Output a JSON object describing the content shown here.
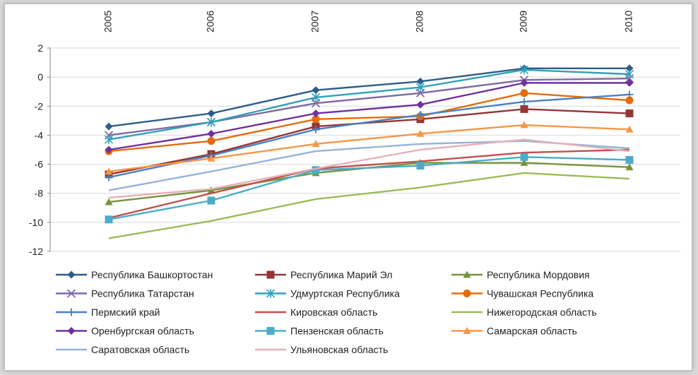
{
  "chart_data": {
    "type": "line",
    "title": "",
    "xlabel": "",
    "ylabel": "",
    "categories": [
      "2005",
      "2006",
      "2007",
      "2008",
      "2009",
      "2010"
    ],
    "ylim": [
      -12,
      2
    ],
    "yticks": [
      2,
      0,
      -2,
      -4,
      -6,
      -8,
      -10,
      -12
    ],
    "grid": true,
    "legend_position": "bottom",
    "series": [
      {
        "name": "Республика Башкортостан",
        "color": "#2e5c8a",
        "marker": "diamond",
        "values": [
          -3.4,
          -2.5,
          -0.9,
          -0.3,
          0.6,
          0.6
        ]
      },
      {
        "name": "Республика Марий Эл",
        "color": "#943634",
        "marker": "square",
        "values": [
          -6.7,
          -5.3,
          -3.4,
          -2.9,
          -2.2,
          -2.5
        ]
      },
      {
        "name": "Республика Мордовия",
        "color": "#77933c",
        "marker": "triangle",
        "values": [
          -8.6,
          -7.8,
          -6.6,
          -5.9,
          -5.9,
          -6.2
        ]
      },
      {
        "name": "Республика Татарстан",
        "color": "#7f6aa3",
        "marker": "x",
        "values": [
          -4.0,
          -3.1,
          -1.8,
          -1.1,
          -0.2,
          -0.1
        ]
      },
      {
        "name": "Удмуртская Республика",
        "color": "#31a0b8",
        "marker": "star",
        "values": [
          -4.3,
          -3.1,
          -1.4,
          -0.7,
          0.5,
          0.2
        ]
      },
      {
        "name": "Чувашская Республика",
        "color": "#e46c0a",
        "marker": "circle",
        "values": [
          -5.1,
          -4.4,
          -2.9,
          -2.7,
          -1.1,
          -1.6
        ]
      },
      {
        "name": "Пермский край",
        "color": "#4a7fc1",
        "marker": "plus",
        "values": [
          -6.9,
          -5.4,
          -3.6,
          -2.6,
          -1.7,
          -1.2
        ]
      },
      {
        "name": "Кировская область",
        "color": "#c0504d",
        "marker": "none",
        "values": [
          -9.7,
          -8.0,
          -6.3,
          -5.8,
          -5.2,
          -5.0
        ]
      },
      {
        "name": "Нижегородская область",
        "color": "#9bbb59",
        "marker": "none",
        "values": [
          -11.1,
          -9.9,
          -8.4,
          -7.6,
          -6.6,
          -7.0
        ]
      },
      {
        "name": "Оренбургская область",
        "color": "#7030a0",
        "marker": "diamond",
        "values": [
          -5.0,
          -3.9,
          -2.5,
          -1.9,
          -0.4,
          -0.4
        ]
      },
      {
        "name": "Пензенская область",
        "color": "#4bacc6",
        "marker": "square",
        "values": [
          -9.8,
          -8.5,
          -6.4,
          -6.1,
          -5.5,
          -5.7
        ]
      },
      {
        "name": "Самарская область",
        "color": "#f79646",
        "marker": "triangle",
        "values": [
          -6.5,
          -5.6,
          -4.6,
          -3.9,
          -3.3,
          -3.6
        ]
      },
      {
        "name": "Саратовская область",
        "color": "#95b3d7",
        "marker": "none",
        "values": [
          -7.8,
          -6.5,
          -5.1,
          -4.6,
          -4.4,
          -4.9
        ]
      },
      {
        "name": "Ульяновская область",
        "color": "#e6b0b8",
        "marker": "none",
        "values": [
          -8.3,
          -7.7,
          -6.3,
          -5.0,
          -4.3,
          -5.1
        ]
      }
    ]
  }
}
